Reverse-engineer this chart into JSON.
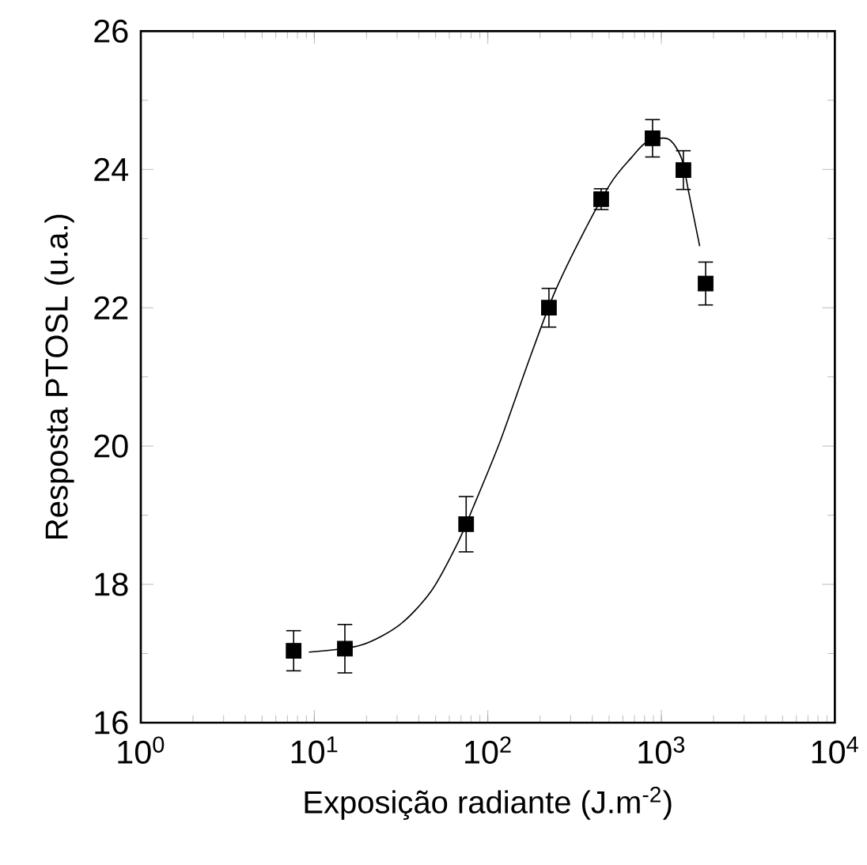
{
  "chart_data": {
    "type": "scatter",
    "xlabel": "Exposição radiante (J.m$^{-2}$)",
    "ylabel": "Resposta PTOSL (u.a.)",
    "log": "x",
    "grid": false,
    "xlim": [
      1,
      10000
    ],
    "ylim": [
      16,
      26
    ],
    "xticks": [
      {
        "value": 1,
        "label": "10$^{0}$"
      },
      {
        "value": 10,
        "label": "10$^{1}$"
      },
      {
        "value": 100,
        "label": "10$^{2}$"
      },
      {
        "value": 1000,
        "label": "10$^{3}$"
      },
      {
        "value": 10000,
        "label": "10$^{4}$"
      }
    ],
    "yticks": [
      16,
      18,
      20,
      22,
      24,
      26
    ],
    "series": [
      {
        "color": "#000000",
        "marker": "square",
        "x": [
          7.6,
          15,
          75,
          225,
          450,
          890,
          1340,
          1800
        ],
        "values": [
          17.04,
          17.07,
          18.87,
          22.0,
          23.57,
          24.45,
          23.99,
          22.35
        ],
        "errors": [
          0.29,
          0.35,
          0.4,
          0.28,
          0.15,
          0.27,
          0.28,
          0.31
        ]
      },
      {
        "type": "line",
        "color": "#000000",
        "marker": "none",
        "line_style": "solid",
        "x": [
          9.3,
          18.5,
          31.2,
          47.4,
          67.1,
          82.8,
          117,
          166,
          236,
          334,
          508,
          672,
          828,
          1094,
          1303,
          1449,
          1664
        ],
        "values": [
          17.02,
          17.12,
          17.42,
          17.91,
          18.6,
          19.13,
          20.05,
          21.12,
          22.15,
          22.95,
          23.79,
          24.17,
          24.4,
          24.44,
          24.17,
          23.63,
          22.89
        ]
      }
    ]
  }
}
